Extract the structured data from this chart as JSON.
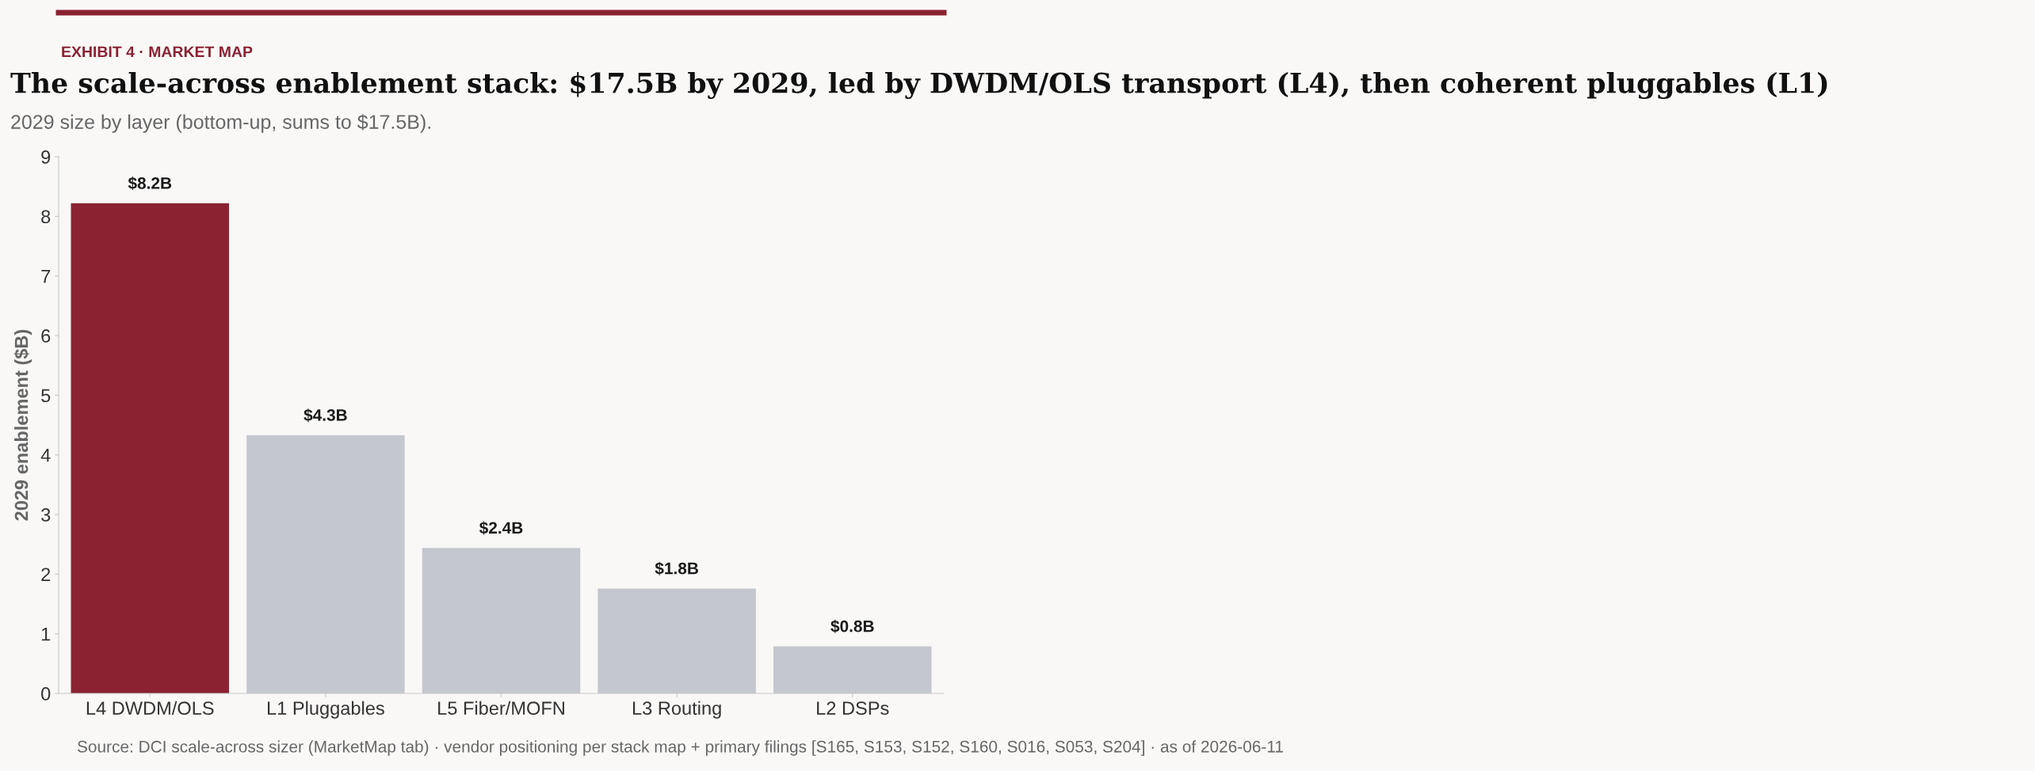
{
  "chart_data": {
    "type": "bar",
    "title": "The scale-across enablement stack: $17.5B by 2029, led by DWDM/OLS transport (L4), then coherent pluggables (L1)",
    "subtitle": "2029 size by layer (bottom-up, sums to $17.5B).",
    "ylabel": "2029 enablement ($B)",
    "categories": [
      "L4 DWDM/OLS",
      "L1 Pluggables",
      "L5 Fiber/MOFN",
      "L3 Routing",
      "L2 DSPs"
    ],
    "values": [
      8.22,
      4.33,
      2.44,
      1.76,
      0.79
    ],
    "colors": [
      "#8b2232",
      "#c4c7ce",
      "#c4c7ce",
      "#c4c7ce",
      "#c4c7ce"
    ],
    "value_labels": [
      "$8.2B",
      "$4.3B",
      "$2.4B",
      "$1.8B",
      "$0.8B"
    ],
    "ylim": [
      0,
      9
    ],
    "yticks": [
      0,
      1,
      2,
      3,
      4,
      5,
      6,
      7,
      8,
      9
    ],
    "grid": false,
    "legend": false,
    "annotations": [
      "EXHIBIT 4 · MARKET MAP",
      "Source: DCI scale-across sizer (MarketMap tab) · vendor positioning per stack map + primary filings [S165, S153, S152, S160, S016, S053, S204] · as of 2026-06-11"
    ]
  }
}
